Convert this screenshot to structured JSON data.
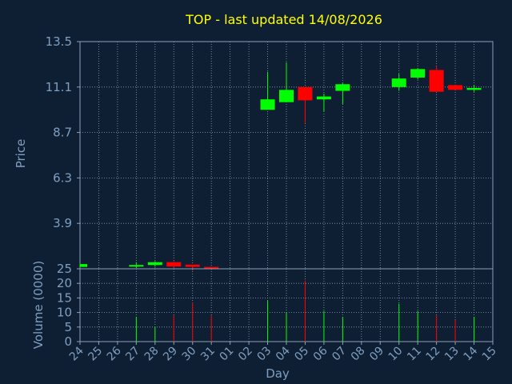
{
  "colors": {
    "background": "#0f1f33",
    "grid": "#8aa2b8",
    "axis_text": "#7f9fc0",
    "title": "#ffff00",
    "up": "#00ff00",
    "down": "#ff0000"
  },
  "chart_data": [
    {
      "type": "candlestick",
      "title": "TOP - last updated 14/08/2026",
      "ylabel": "Price",
      "ylim": [
        1.5,
        13.5
      ],
      "yticks": [
        "13.5",
        "11.1",
        "8.7",
        "6.3",
        "3.9",
        "1.5"
      ],
      "grid": true,
      "categories": [
        "24",
        "25",
        "26",
        "27",
        "28",
        "29",
        "30",
        "31",
        "01",
        "02",
        "03",
        "04",
        "05",
        "06",
        "07",
        "08",
        "09",
        "10",
        "11",
        "12",
        "13",
        "14",
        "15"
      ],
      "candles": [
        {
          "x": "24",
          "open": 1.6,
          "close": 1.75,
          "high": 1.8,
          "low": 1.6
        },
        {
          "x": "27",
          "open": 1.62,
          "close": 1.7,
          "high": 1.85,
          "low": 1.55
        },
        {
          "x": "28",
          "open": 1.7,
          "close": 1.85,
          "high": 1.9,
          "low": 1.62
        },
        {
          "x": "29",
          "open": 1.85,
          "close": 1.62,
          "high": 1.9,
          "low": 1.55
        },
        {
          "x": "30",
          "open": 1.72,
          "close": 1.6,
          "high": 1.72,
          "low": 1.4
        },
        {
          "x": "31",
          "open": 1.6,
          "close": 1.52,
          "high": 1.62,
          "low": 1.45
        },
        {
          "x": "03",
          "open": 9.9,
          "close": 10.45,
          "high": 11.9,
          "low": 9.9
        },
        {
          "x": "04",
          "open": 10.3,
          "close": 10.95,
          "high": 12.4,
          "low": 10.3
        },
        {
          "x": "05",
          "open": 11.1,
          "close": 10.4,
          "high": 11.1,
          "low": 9.2
        },
        {
          "x": "06",
          "open": 10.45,
          "close": 10.6,
          "high": 10.75,
          "low": 9.8
        },
        {
          "x": "07",
          "open": 10.9,
          "close": 11.25,
          "high": 11.3,
          "low": 10.2
        },
        {
          "x": "10",
          "open": 11.1,
          "close": 11.55,
          "high": 11.8,
          "low": 10.9
        },
        {
          "x": "11",
          "open": 11.6,
          "close": 12.05,
          "high": 12.1,
          "low": 11.5
        },
        {
          "x": "12",
          "open": 12.0,
          "close": 10.85,
          "high": 12.2,
          "low": 10.85
        },
        {
          "x": "13",
          "open": 11.2,
          "close": 10.95,
          "high": 11.2,
          "low": 10.95
        },
        {
          "x": "14",
          "open": 10.95,
          "close": 11.05,
          "high": 11.2,
          "low": 10.85
        }
      ]
    },
    {
      "type": "bar",
      "ylabel": "Volume (0000)",
      "xlabel": "Day",
      "ylim": [
        0,
        25
      ],
      "yticks": [
        "0",
        "5",
        "10",
        "15",
        "20",
        "25"
      ],
      "grid": true,
      "categories": [
        "24",
        "25",
        "26",
        "27",
        "28",
        "29",
        "30",
        "31",
        "01",
        "02",
        "03",
        "04",
        "05",
        "06",
        "07",
        "08",
        "09",
        "10",
        "11",
        "12",
        "13",
        "14",
        "15"
      ],
      "volumes": [
        {
          "x": "27",
          "value": 8.5,
          "dir": "up"
        },
        {
          "x": "28",
          "value": 5,
          "dir": "up"
        },
        {
          "x": "29",
          "value": 9,
          "dir": "down"
        },
        {
          "x": "30",
          "value": 13.5,
          "dir": "down"
        },
        {
          "x": "31",
          "value": 9,
          "dir": "down"
        },
        {
          "x": "03",
          "value": 14,
          "dir": "up"
        },
        {
          "x": "04",
          "value": 10,
          "dir": "up"
        },
        {
          "x": "05",
          "value": 21,
          "dir": "down"
        },
        {
          "x": "06",
          "value": 10.5,
          "dir": "up"
        },
        {
          "x": "07",
          "value": 8.5,
          "dir": "up"
        },
        {
          "x": "10",
          "value": 13,
          "dir": "up"
        },
        {
          "x": "11",
          "value": 10.5,
          "dir": "up"
        },
        {
          "x": "12",
          "value": 9,
          "dir": "down"
        },
        {
          "x": "13",
          "value": 7.5,
          "dir": "down"
        },
        {
          "x": "14",
          "value": 8.5,
          "dir": "up"
        }
      ]
    }
  ]
}
